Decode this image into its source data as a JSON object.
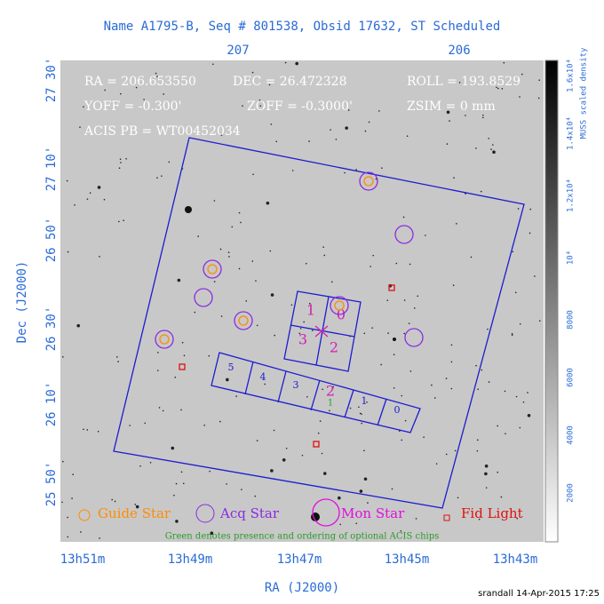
{
  "header": {
    "title": "Name A1795-B, Seq # 801538, Obsid 17632, ST Scheduled"
  },
  "axes": {
    "top_ticks": [
      "207",
      "206"
    ],
    "left_ticks": [
      "27 30'",
      "27 10'",
      "26 50'",
      "26 30'",
      "26 10'",
      "25 50'"
    ],
    "bottom_ticks": [
      "13h51m",
      "13h49m",
      "13h47m",
      "13h45m",
      "13h43m"
    ],
    "x_label": "RA (J2000)",
    "y_label": "Dec (J2000)"
  },
  "overlay": [
    "RA = 206.653550",
    "DEC = 26.472328",
    "ROLL = 193.8529",
    "YOFF = -0.300'",
    "ZOFF = -0.3000'",
    "ZSIM = 0 mm",
    "ACIS PB = WT00452034"
  ],
  "colorbar": {
    "label": "MUSS scaled density",
    "ticks": [
      "2000",
      "4000",
      "6000",
      "8000",
      "10⁴",
      "1.2x10⁴",
      "1.4x10⁴",
      "1.6x10⁴"
    ]
  },
  "chips": {
    "i": [
      "1",
      "0",
      "3",
      "2"
    ],
    "s": [
      "5",
      "4",
      "3",
      "2",
      "1",
      "0"
    ],
    "optional": "1"
  },
  "legend": [
    "Guide Star",
    "Acq Star",
    "Mon Star",
    "Fid Light"
  ],
  "note": "Green denotes presence and ordering of optional ACIS chips",
  "footer": "srandall 14-Apr-2015 17:25"
}
